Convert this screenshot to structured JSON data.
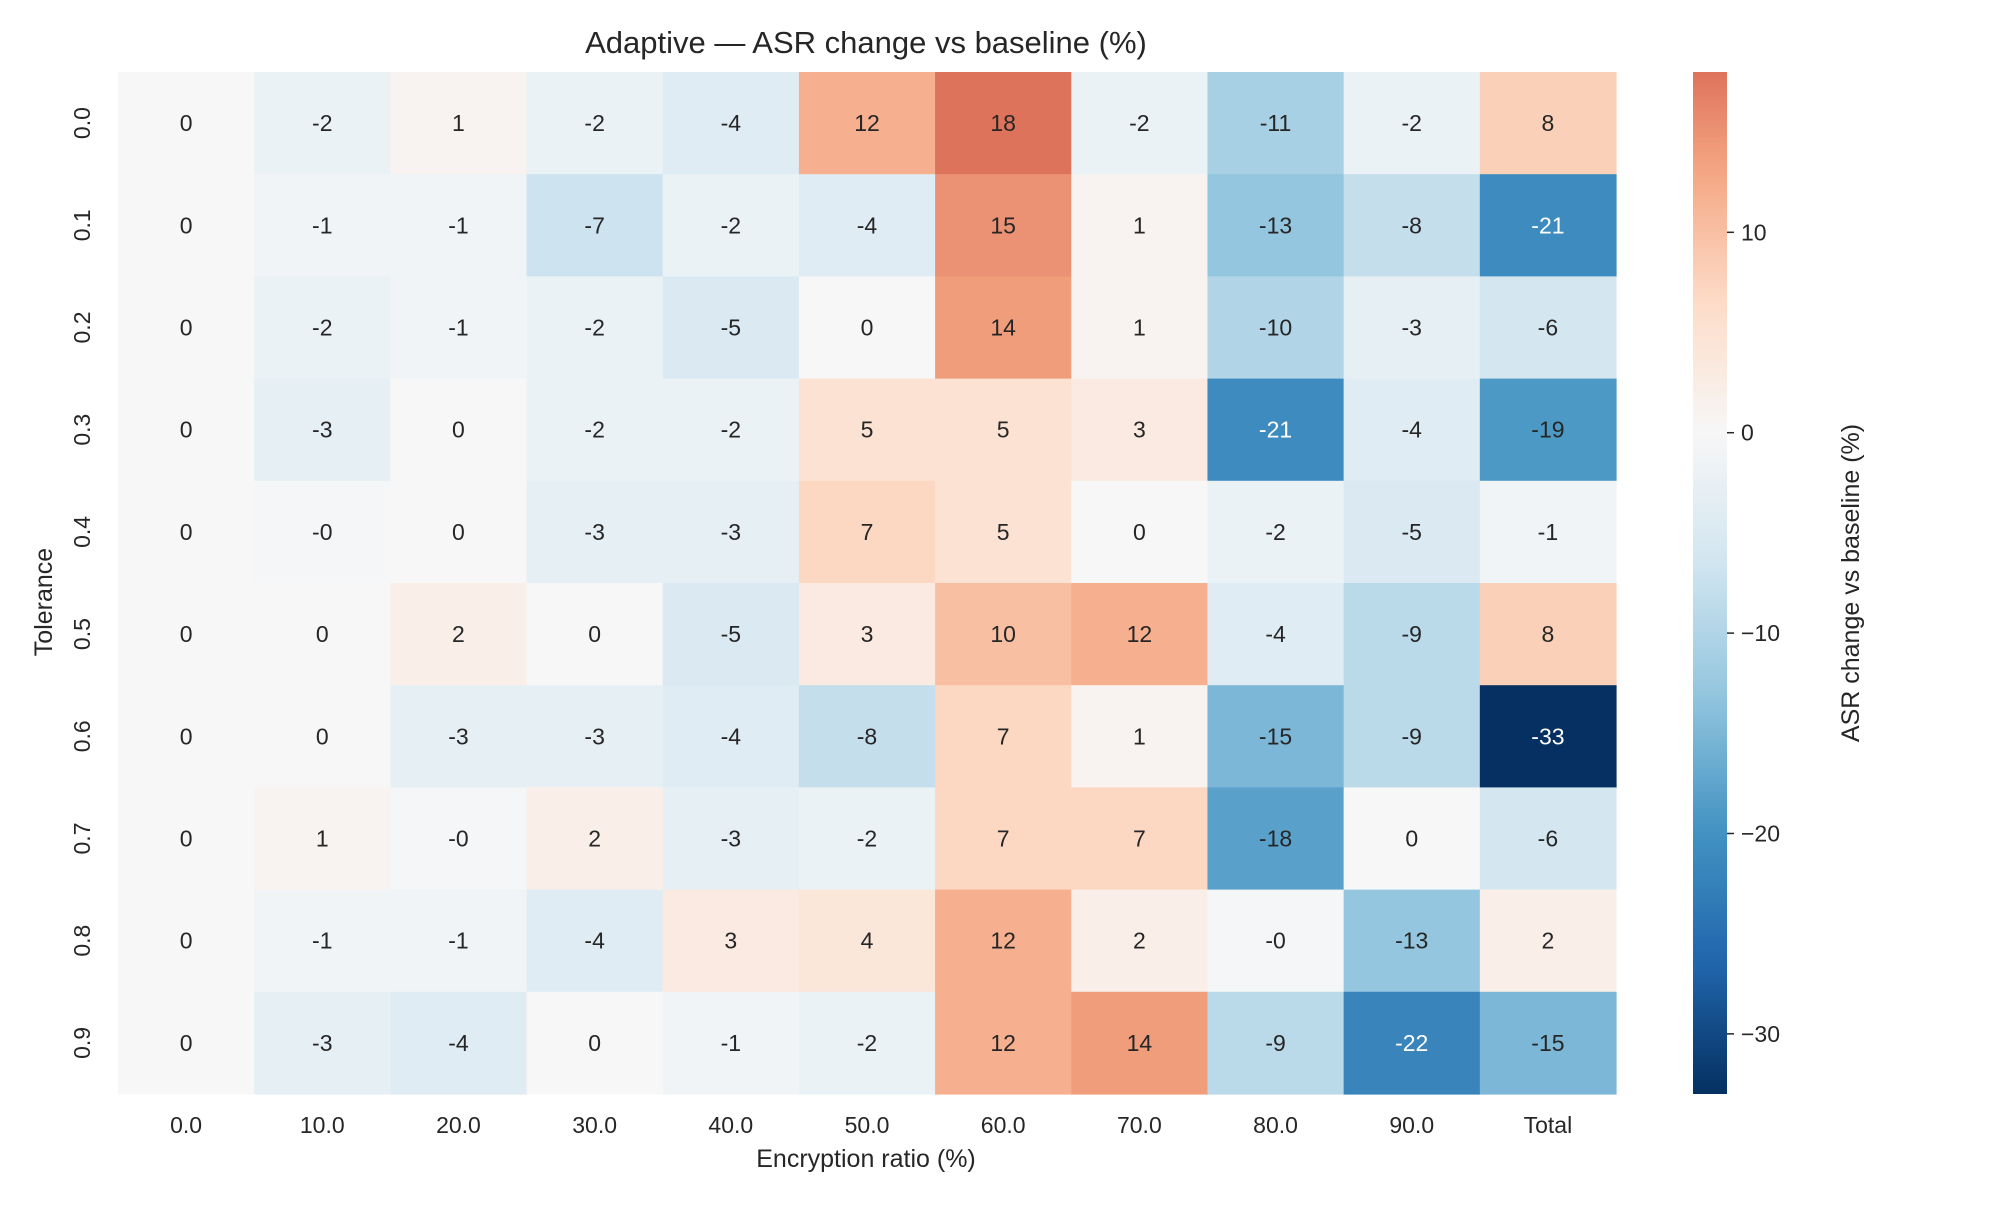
{
  "chart_data": {
    "type": "heatmap",
    "title": "Adaptive — ASR change vs baseline (%)",
    "xlabel": "Encryption ratio (%)",
    "ylabel": "Tolerance",
    "x_categories": [
      "0.0",
      "10.0",
      "20.0",
      "30.0",
      "40.0",
      "50.0",
      "60.0",
      "70.0",
      "80.0",
      "90.0",
      "Total"
    ],
    "y_categories": [
      "0.0",
      "0.1",
      "0.2",
      "0.3",
      "0.4",
      "0.5",
      "0.6",
      "0.7",
      "0.8",
      "0.9"
    ],
    "values": [
      [
        0,
        -2,
        1,
        -2,
        -4,
        12,
        18,
        -2,
        -11,
        -2,
        8
      ],
      [
        0,
        -1,
        -1,
        -7,
        -2,
        -4,
        15,
        1,
        -13,
        -8,
        -21
      ],
      [
        0,
        -2,
        -1,
        -2,
        -5,
        0,
        14,
        1,
        -10,
        -3,
        -6
      ],
      [
        0,
        -3,
        0,
        -2,
        -2,
        5,
        5,
        3,
        -21,
        -4,
        -19
      ],
      [
        0,
        -0.3,
        0,
        -3,
        -3,
        7,
        5,
        0,
        -2,
        -5,
        -1
      ],
      [
        0,
        0,
        2,
        0,
        -5,
        3,
        10,
        12,
        -4,
        -9,
        8
      ],
      [
        0,
        0,
        -3,
        -3,
        -4,
        -8,
        7,
        1,
        -15,
        -9,
        -33
      ],
      [
        0,
        1,
        -0.3,
        2,
        -3,
        -2,
        7,
        7,
        -18,
        0,
        -6
      ],
      [
        0,
        -1,
        -1,
        -4,
        3,
        4,
        12,
        2,
        -0.3,
        -13,
        2
      ],
      [
        0,
        -3,
        -4,
        0,
        -1,
        -2,
        12,
        14,
        -9,
        -22,
        -15
      ]
    ],
    "cell_labels": [
      [
        "0",
        "-2",
        "1",
        "-2",
        "-4",
        "12",
        "18",
        "-2",
        "-11",
        "-2",
        "8"
      ],
      [
        "0",
        "-1",
        "-1",
        "-7",
        "-2",
        "-4",
        "15",
        "1",
        "-13",
        "-8",
        "-21"
      ],
      [
        "0",
        "-2",
        "-1",
        "-2",
        "-5",
        "0",
        "14",
        "1",
        "-10",
        "-3",
        "-6"
      ],
      [
        "0",
        "-3",
        "0",
        "-2",
        "-2",
        "5",
        "5",
        "3",
        "-21",
        "-4",
        "-19"
      ],
      [
        "0",
        "-0",
        "0",
        "-3",
        "-3",
        "7",
        "5",
        "0",
        "-2",
        "-5",
        "-1"
      ],
      [
        "0",
        "0",
        "2",
        "0",
        "-5",
        "3",
        "10",
        "12",
        "-4",
        "-9",
        "8"
      ],
      [
        "0",
        "0",
        "-3",
        "-3",
        "-4",
        "-8",
        "7",
        "1",
        "-15",
        "-9",
        "-33"
      ],
      [
        "0",
        "1",
        "-0",
        "2",
        "-3",
        "-2",
        "7",
        "7",
        "-18",
        "0",
        "-6"
      ],
      [
        "0",
        "-1",
        "-1",
        "-4",
        "3",
        "4",
        "12",
        "2",
        "-0",
        "-13",
        "2"
      ],
      [
        "0",
        "-3",
        "-4",
        "0",
        "-1",
        "-2",
        "12",
        "14",
        "-9",
        "-22",
        "-15"
      ]
    ],
    "colorbar": {
      "label": "ASR change vs baseline (%)",
      "range": [
        -33,
        18
      ],
      "ticks": [
        10,
        0,
        -10,
        -20,
        -30
      ],
      "tick_labels": [
        "10",
        "0",
        "−10",
        "−20",
        "−30"
      ],
      "colormap": "diverging blue-white-red (RdBu_r)",
      "center": 0
    },
    "grid": false
  }
}
